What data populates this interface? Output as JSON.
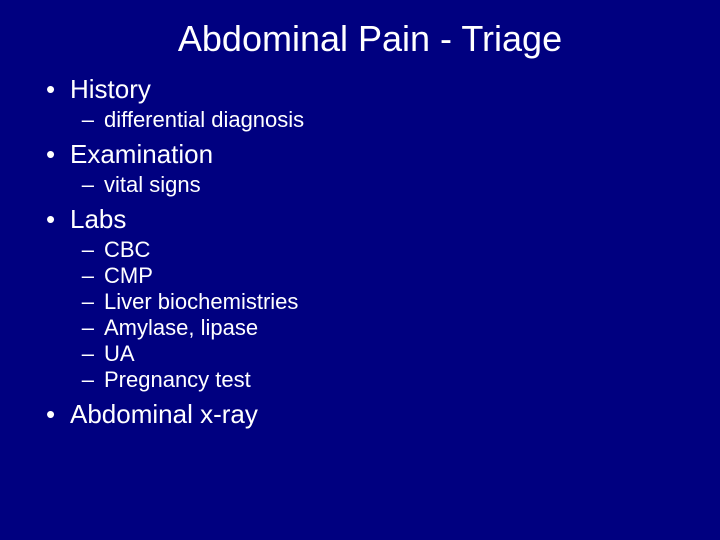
{
  "slide": {
    "background_color": "#000080",
    "text_color": "#ffffff",
    "title": {
      "text": "Abdominal Pain - Triage",
      "fontsize": 36,
      "weight": "400"
    },
    "bullet_char": "•",
    "dash_char": "–",
    "lvl1_fontsize": 26,
    "lvl2_fontsize": 22,
    "items": [
      {
        "label": "History",
        "sub": [
          {
            "label": "differential diagnosis"
          }
        ]
      },
      {
        "label": "Examination",
        "sub": [
          {
            "label": "vital signs"
          }
        ]
      },
      {
        "label": "Labs",
        "sub": [
          {
            "label": "CBC"
          },
          {
            "label": "CMP"
          },
          {
            "label": "Liver biochemistries"
          },
          {
            "label": "Amylase, lipase"
          },
          {
            "label": "UA"
          },
          {
            "label": "Pregnancy test"
          }
        ]
      },
      {
        "label": "Abdominal x-ray",
        "sub": []
      }
    ]
  }
}
